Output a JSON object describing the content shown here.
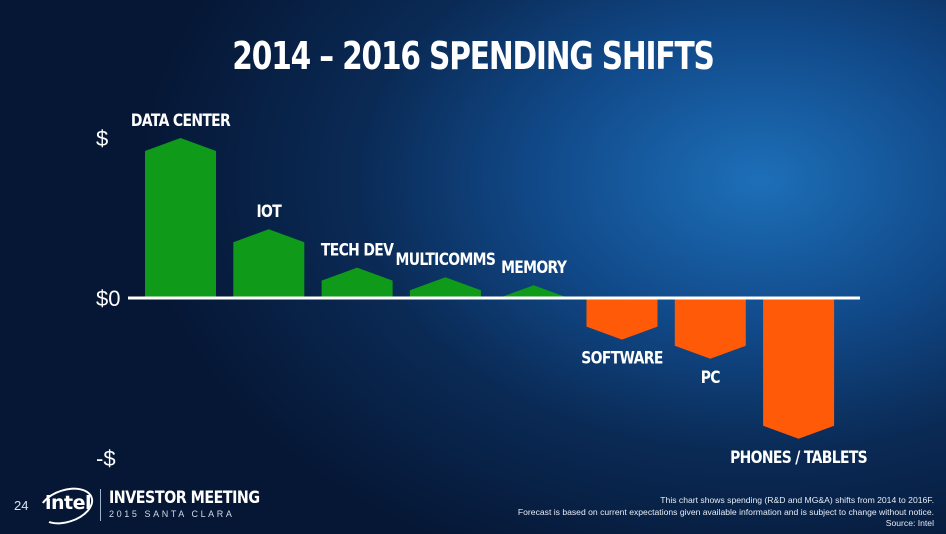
{
  "slide": {
    "title": "2014 – 2016 SPENDING SHIFTS",
    "page_number": "24"
  },
  "branding": {
    "logo": "intel",
    "event_name": "INVESTOR MEETING",
    "event_place": "2015 SANTA CLARA"
  },
  "footnote": {
    "line1": "This chart shows spending (R&D and MG&A) shifts from 2014  to 2016F.",
    "line2": "Forecast is based on current expectations given available information and is subject to change without notice.",
    "line3": "Source: Intel"
  },
  "chart_data": {
    "type": "bar",
    "categories": [
      "DATA CENTER",
      "IOT",
      "TECH DEV",
      "MULTICOMMS",
      "MEMORY",
      "SOFTWARE",
      "PC",
      "PHONES / TABLETS"
    ],
    "values": [
      1.0,
      0.43,
      0.19,
      0.13,
      0.08,
      -0.26,
      -0.38,
      -0.88
    ],
    "y_tick_labels": [
      {
        "value": 1,
        "label": "$"
      },
      {
        "value": 0,
        "label": "$0"
      },
      {
        "value": -1,
        "label": "-$"
      }
    ],
    "ylim": [
      -1.05,
      1.05
    ],
    "colors": {
      "positive": "#0f9a1a",
      "negative": "#ff5a08",
      "baseline": "#ffffff"
    },
    "grid": false,
    "legend": "none"
  }
}
